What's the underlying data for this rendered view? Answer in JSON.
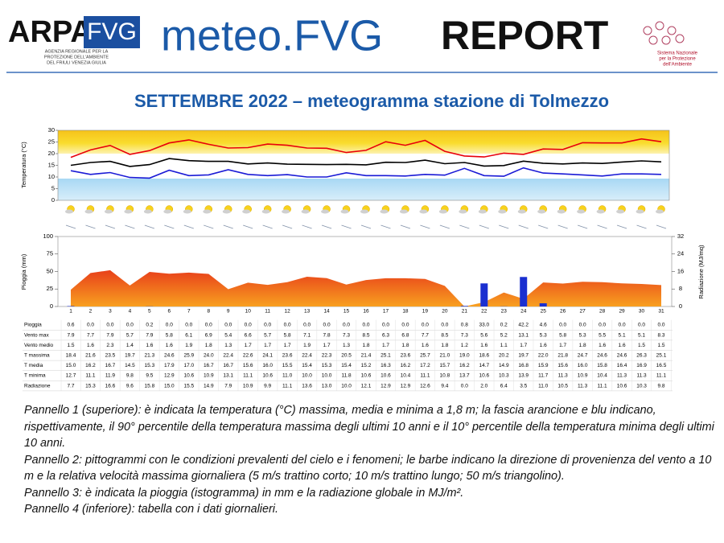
{
  "header": {
    "logo_arpa": "ARPA",
    "logo_fvg": "FVG",
    "logo_sub": [
      "AGENZIA REGIONALE PER LA",
      "PROTEZIONE DELL'AMBIENTE",
      "DEL FRIULI VENEZIA GIULIA"
    ],
    "report_title": "meteo.FVG",
    "report_word": "REPORT",
    "snpa": [
      "Sistema Nazionale",
      "per la Protezione",
      "dell'Ambiente"
    ]
  },
  "title": "SETTEMBRE 2022 – meteogramma stazione di Tolmezzo",
  "chart_data": [
    {
      "type": "line",
      "y_label": "Temperatura (°C)",
      "ylim": [
        0,
        30
      ],
      "yticks": [
        0,
        5,
        10,
        15,
        20,
        25,
        30
      ],
      "series": [
        {
          "color": "#e8000b",
          "values": [
            18.4,
            21.6,
            23.5,
            19.7,
            21.3,
            24.6,
            25.9,
            24.0,
            22.4,
            22.6,
            24.1,
            23.6,
            22.4,
            22.3,
            20.5,
            21.4,
            25.1,
            23.6,
            25.7,
            21.0,
            19.0,
            18.6,
            20.2,
            19.7,
            22.0,
            21.8,
            24.7,
            24.6,
            24.6,
            26.3,
            25.1
          ]
        },
        {
          "color": "#000000",
          "values": [
            15.0,
            16.2,
            16.7,
            14.5,
            15.3,
            17.9,
            17.0,
            16.7,
            16.7,
            15.6,
            16.0,
            15.5,
            15.4,
            15.3,
            15.4,
            15.2,
            16.3,
            16.2,
            17.2,
            15.7,
            16.2,
            14.7,
            14.9,
            16.8,
            15.9,
            15.6,
            16.0,
            15.8,
            16.4,
            16.9,
            16.5
          ]
        },
        {
          "color": "#1a1ad6",
          "values": [
            12.7,
            11.1,
            11.9,
            9.8,
            9.5,
            12.9,
            10.6,
            10.9,
            13.1,
            11.1,
            10.6,
            11.0,
            10.0,
            10.0,
            11.8,
            10.6,
            10.6,
            10.4,
            11.1,
            10.8,
            13.7,
            10.6,
            10.3,
            13.9,
            11.7,
            11.3,
            10.9,
            10.4,
            11.3,
            11.3,
            11.1
          ]
        }
      ]
    },
    {
      "type": "bar",
      "categories": [
        "1",
        "2",
        "3",
        "4",
        "5",
        "6",
        "7",
        "8",
        "9",
        "10",
        "11",
        "12",
        "13",
        "14",
        "15",
        "16",
        "17",
        "18",
        "19",
        "20",
        "21",
        "22",
        "23",
        "24",
        "25",
        "26",
        "27",
        "28",
        "29",
        "30",
        "31"
      ],
      "y_label": "Pioggia (mm)",
      "ylim": [
        0,
        100
      ],
      "yticks": [
        0,
        25,
        50,
        75,
        100
      ],
      "y2_label": "Radiazione (MJ/mq)",
      "y2lim": [
        0,
        32
      ],
      "y2ticks": [
        0,
        8,
        16,
        24,
        32
      ],
      "series": [
        {
          "type": "bar",
          "color": "#1a2fd0",
          "values": [
            0.6,
            0,
            0,
            0,
            0.2,
            0,
            0,
            0,
            0,
            0,
            0,
            0,
            0,
            0,
            0,
            0,
            0,
            0,
            0,
            0,
            0.8,
            33.0,
            0.2,
            42.2,
            4.6,
            0,
            0,
            0,
            0,
            0,
            0
          ]
        },
        {
          "type": "area",
          "axis": "y2",
          "color": "#f07818",
          "values": [
            7.7,
            15.3,
            16.6,
            9.6,
            15.8,
            15.0,
            15.5,
            14.9,
            7.9,
            10.9,
            9.9,
            11.1,
            13.6,
            13.0,
            10.0,
            12.1,
            12.9,
            12.9,
            12.6,
            9.4,
            0.0,
            2.0,
            6.4,
            3.5,
            11.0,
            10.5,
            11.3,
            11.1,
            10.6,
            10.3,
            9.8
          ]
        }
      ]
    }
  ],
  "table": {
    "rows": [
      {
        "label": "Pioggia",
        "values": [
          "0.6",
          "0.0",
          "0.0",
          "0.0",
          "0.2",
          "0.0",
          "0.0",
          "0.0",
          "0.0",
          "0.0",
          "0.0",
          "0.0",
          "0.0",
          "0.0",
          "0.0",
          "0.0",
          "0.0",
          "0.0",
          "0.0",
          "0.0",
          "0.8",
          "33.0",
          "0.2",
          "42.2",
          "4.6",
          "0.0",
          "0.0",
          "0.0",
          "0.0",
          "0.0",
          "0.0"
        ]
      },
      {
        "label": "Vento max",
        "values": [
          "7.9",
          "7.7",
          "7.9",
          "5.7",
          "7.9",
          "5.8",
          "6.1",
          "6.9",
          "5.4",
          "6.6",
          "5.7",
          "5.8",
          "7.1",
          "7.8",
          "7.3",
          "8.5",
          "6.3",
          "6.8",
          "7.7",
          "8.5",
          "7.3",
          "5.6",
          "5.2",
          "13.1",
          "5.3",
          "5.8",
          "5.3",
          "5.5",
          "5.1",
          "5.1",
          "8.3"
        ]
      },
      {
        "label": "Vento medio",
        "values": [
          "1.5",
          "1.6",
          "2.3",
          "1.4",
          "1.6",
          "1.6",
          "1.9",
          "1.8",
          "1.3",
          "1.7",
          "1.7",
          "1.7",
          "1.9",
          "1.7",
          "1.3",
          "1.8",
          "1.7",
          "1.8",
          "1.6",
          "1.8",
          "1.2",
          "1.6",
          "1.1",
          "1.7",
          "1.6",
          "1.7",
          "1.8",
          "1.6",
          "1.6",
          "1.5",
          "1.5"
        ]
      },
      {
        "label": "T massima",
        "values": [
          "18.4",
          "21.6",
          "23.5",
          "19.7",
          "21.3",
          "24.6",
          "25.9",
          "24.0",
          "22.4",
          "22.6",
          "24.1",
          "23.6",
          "22.4",
          "22.3",
          "20.5",
          "21.4",
          "25.1",
          "23.6",
          "25.7",
          "21.0",
          "19.0",
          "18.6",
          "20.2",
          "19.7",
          "22.0",
          "21.8",
          "24.7",
          "24.6",
          "24.6",
          "26.3",
          "25.1"
        ]
      },
      {
        "label": "T media",
        "values": [
          "15.0",
          "16.2",
          "16.7",
          "14.5",
          "15.3",
          "17.9",
          "17.0",
          "16.7",
          "16.7",
          "15.6",
          "16.0",
          "15.5",
          "15.4",
          "15.3",
          "15.4",
          "15.2",
          "16.3",
          "16.2",
          "17.2",
          "15.7",
          "16.2",
          "14.7",
          "14.9",
          "16.8",
          "15.9",
          "15.6",
          "16.0",
          "15.8",
          "16.4",
          "16.9",
          "16.5"
        ]
      },
      {
        "label": "T minima",
        "values": [
          "12.7",
          "11.1",
          "11.9",
          "9.8",
          "9.5",
          "12.9",
          "10.6",
          "10.9",
          "13.1",
          "11.1",
          "10.6",
          "11.0",
          "10.0",
          "10.0",
          "11.8",
          "10.6",
          "10.6",
          "10.4",
          "11.1",
          "10.8",
          "13.7",
          "10.6",
          "10.3",
          "13.9",
          "11.7",
          "11.3",
          "10.9",
          "10.4",
          "11.3",
          "11.3",
          "11.1"
        ]
      },
      {
        "label": "Radiazione",
        "values": [
          "7.7",
          "15.3",
          "16.6",
          "9.6",
          "15.8",
          "15.0",
          "15.5",
          "14.9",
          "7.9",
          "10.9",
          "9.9",
          "11.1",
          "13.6",
          "13.0",
          "10.0",
          "12.1",
          "12.9",
          "12.9",
          "12.6",
          "9.4",
          "0.0",
          "2.0",
          "6.4",
          "3.5",
          "11.0",
          "10.5",
          "11.3",
          "11.1",
          "10.6",
          "10.3",
          "9.8"
        ]
      }
    ]
  },
  "caption": [
    "Pannello 1 (superiore): è indicata la temperatura (°C) massima, media e minima a 1,8 m; la fascia arancione e blu indicano, rispettivamente, il 90° percentile della temperatura massima degli ultimi 10 anni e il 10° percentile della temperatura minima degli ultimi 10 anni.",
    "Pannello 2: pittogrammi con le condizioni prevalenti del cielo e i fenomeni; le barbe indicano la direzione di provenienza del vento a 10 m e la relativa velocità massima giornaliera (5 m/s trattino corto; 10 m/s trattino lungo; 50 m/s triangolino).",
    "Pannello 3: è indicata la pioggia (istogramma) in mm e la radiazione globale in MJ/m².",
    "Pannello 4 (inferiore): tabella con i dati giornalieri."
  ]
}
